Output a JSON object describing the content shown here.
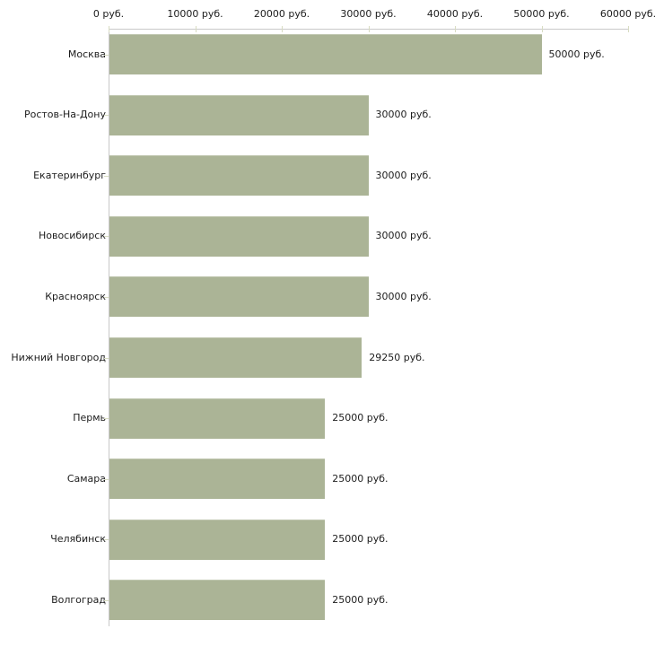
{
  "chart_data": {
    "type": "bar",
    "orientation": "horizontal",
    "title": "",
    "xlabel": "",
    "ylabel": "",
    "categories": [
      "Москва",
      "Ростов-На-Дону",
      "Екатеринбург",
      "Новосибирск",
      "Красноярск",
      "Нижний Новгород",
      "Пермь",
      "Самара",
      "Челябинск",
      "Волгоград"
    ],
    "values": [
      50000,
      30000,
      30000,
      30000,
      30000,
      29250,
      25000,
      25000,
      25000,
      25000
    ],
    "data_labels": [
      "50000 руб.",
      "30000 руб.",
      "30000 руб.",
      "30000 руб.",
      "30000 руб.",
      "29250 руб.",
      "25000 руб.",
      "25000 руб.",
      "25000 руб.",
      "25000 руб."
    ],
    "unit": "руб.",
    "x_axis": {
      "min": 0,
      "max": 60000,
      "position": "top",
      "tick_values": [
        0,
        10000,
        20000,
        30000,
        40000,
        50000,
        60000
      ],
      "tick_labels": [
        "0 руб.",
        "10000 руб.",
        "20000 руб.",
        "30000 руб.",
        "40000 руб.",
        "50000 руб.",
        "60000 руб."
      ]
    },
    "grid": false,
    "legend": false,
    "colors": {
      "bar": "#abb496",
      "axis_line": "#c9c9c9",
      "tick_mark": "#d8dcc2",
      "text": "#1c1c1c",
      "background": "#ffffff"
    }
  }
}
